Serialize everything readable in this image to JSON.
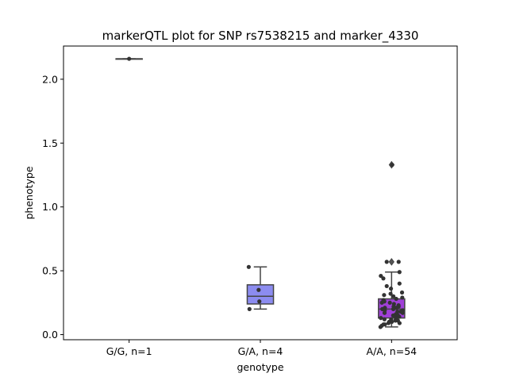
{
  "chart_data": {
    "type": "box",
    "title": "markerQTL plot for SNP rs7538215 and marker_4330",
    "xlabel": "genotype",
    "ylabel": "phenotype",
    "ylim": [
      -0.04,
      2.26
    ],
    "yticks": [
      0.0,
      0.5,
      1.0,
      1.5,
      2.0
    ],
    "ytick_labels": [
      "0.0",
      "0.5",
      "1.0",
      "1.5",
      "2.0"
    ],
    "categories": [
      "G/G, n=1",
      "G/A, n=4",
      "A/A, n=54"
    ],
    "grid": false,
    "legend": "none",
    "boxes": [
      {
        "category": "G/G, n=1",
        "color": "#8c8cf0",
        "q1": 2.16,
        "median": 2.16,
        "q3": 2.16,
        "whisker_low": 2.16,
        "whisker_high": 2.16,
        "outliers": [],
        "points": [
          2.16
        ]
      },
      {
        "category": "G/A, n=4",
        "color": "#8c8cf0",
        "q1": 0.24,
        "median": 0.3,
        "q3": 0.39,
        "whisker_low": 0.2,
        "whisker_high": 0.53,
        "outliers": [],
        "points": [
          0.53,
          0.35,
          0.26,
          0.2
        ]
      },
      {
        "category": "A/A, n=54",
        "color": "#a040d8",
        "q1": 0.13,
        "median": 0.2,
        "q3": 0.28,
        "whisker_low": 0.06,
        "whisker_high": 0.49,
        "outliers": [
          1.33,
          0.57
        ],
        "points": [
          1.33,
          0.57,
          0.57,
          0.49,
          0.46,
          0.44,
          0.4,
          0.38,
          0.36,
          0.33,
          0.32,
          0.31,
          0.3,
          0.29,
          0.28,
          0.27,
          0.26,
          0.25,
          0.25,
          0.24,
          0.23,
          0.22,
          0.22,
          0.21,
          0.21,
          0.2,
          0.2,
          0.19,
          0.19,
          0.18,
          0.18,
          0.17,
          0.17,
          0.16,
          0.16,
          0.15,
          0.15,
          0.14,
          0.14,
          0.13,
          0.13,
          0.12,
          0.12,
          0.11,
          0.11,
          0.1,
          0.1,
          0.1,
          0.09,
          0.09,
          0.08,
          0.08,
          0.07,
          0.06
        ]
      }
    ]
  }
}
